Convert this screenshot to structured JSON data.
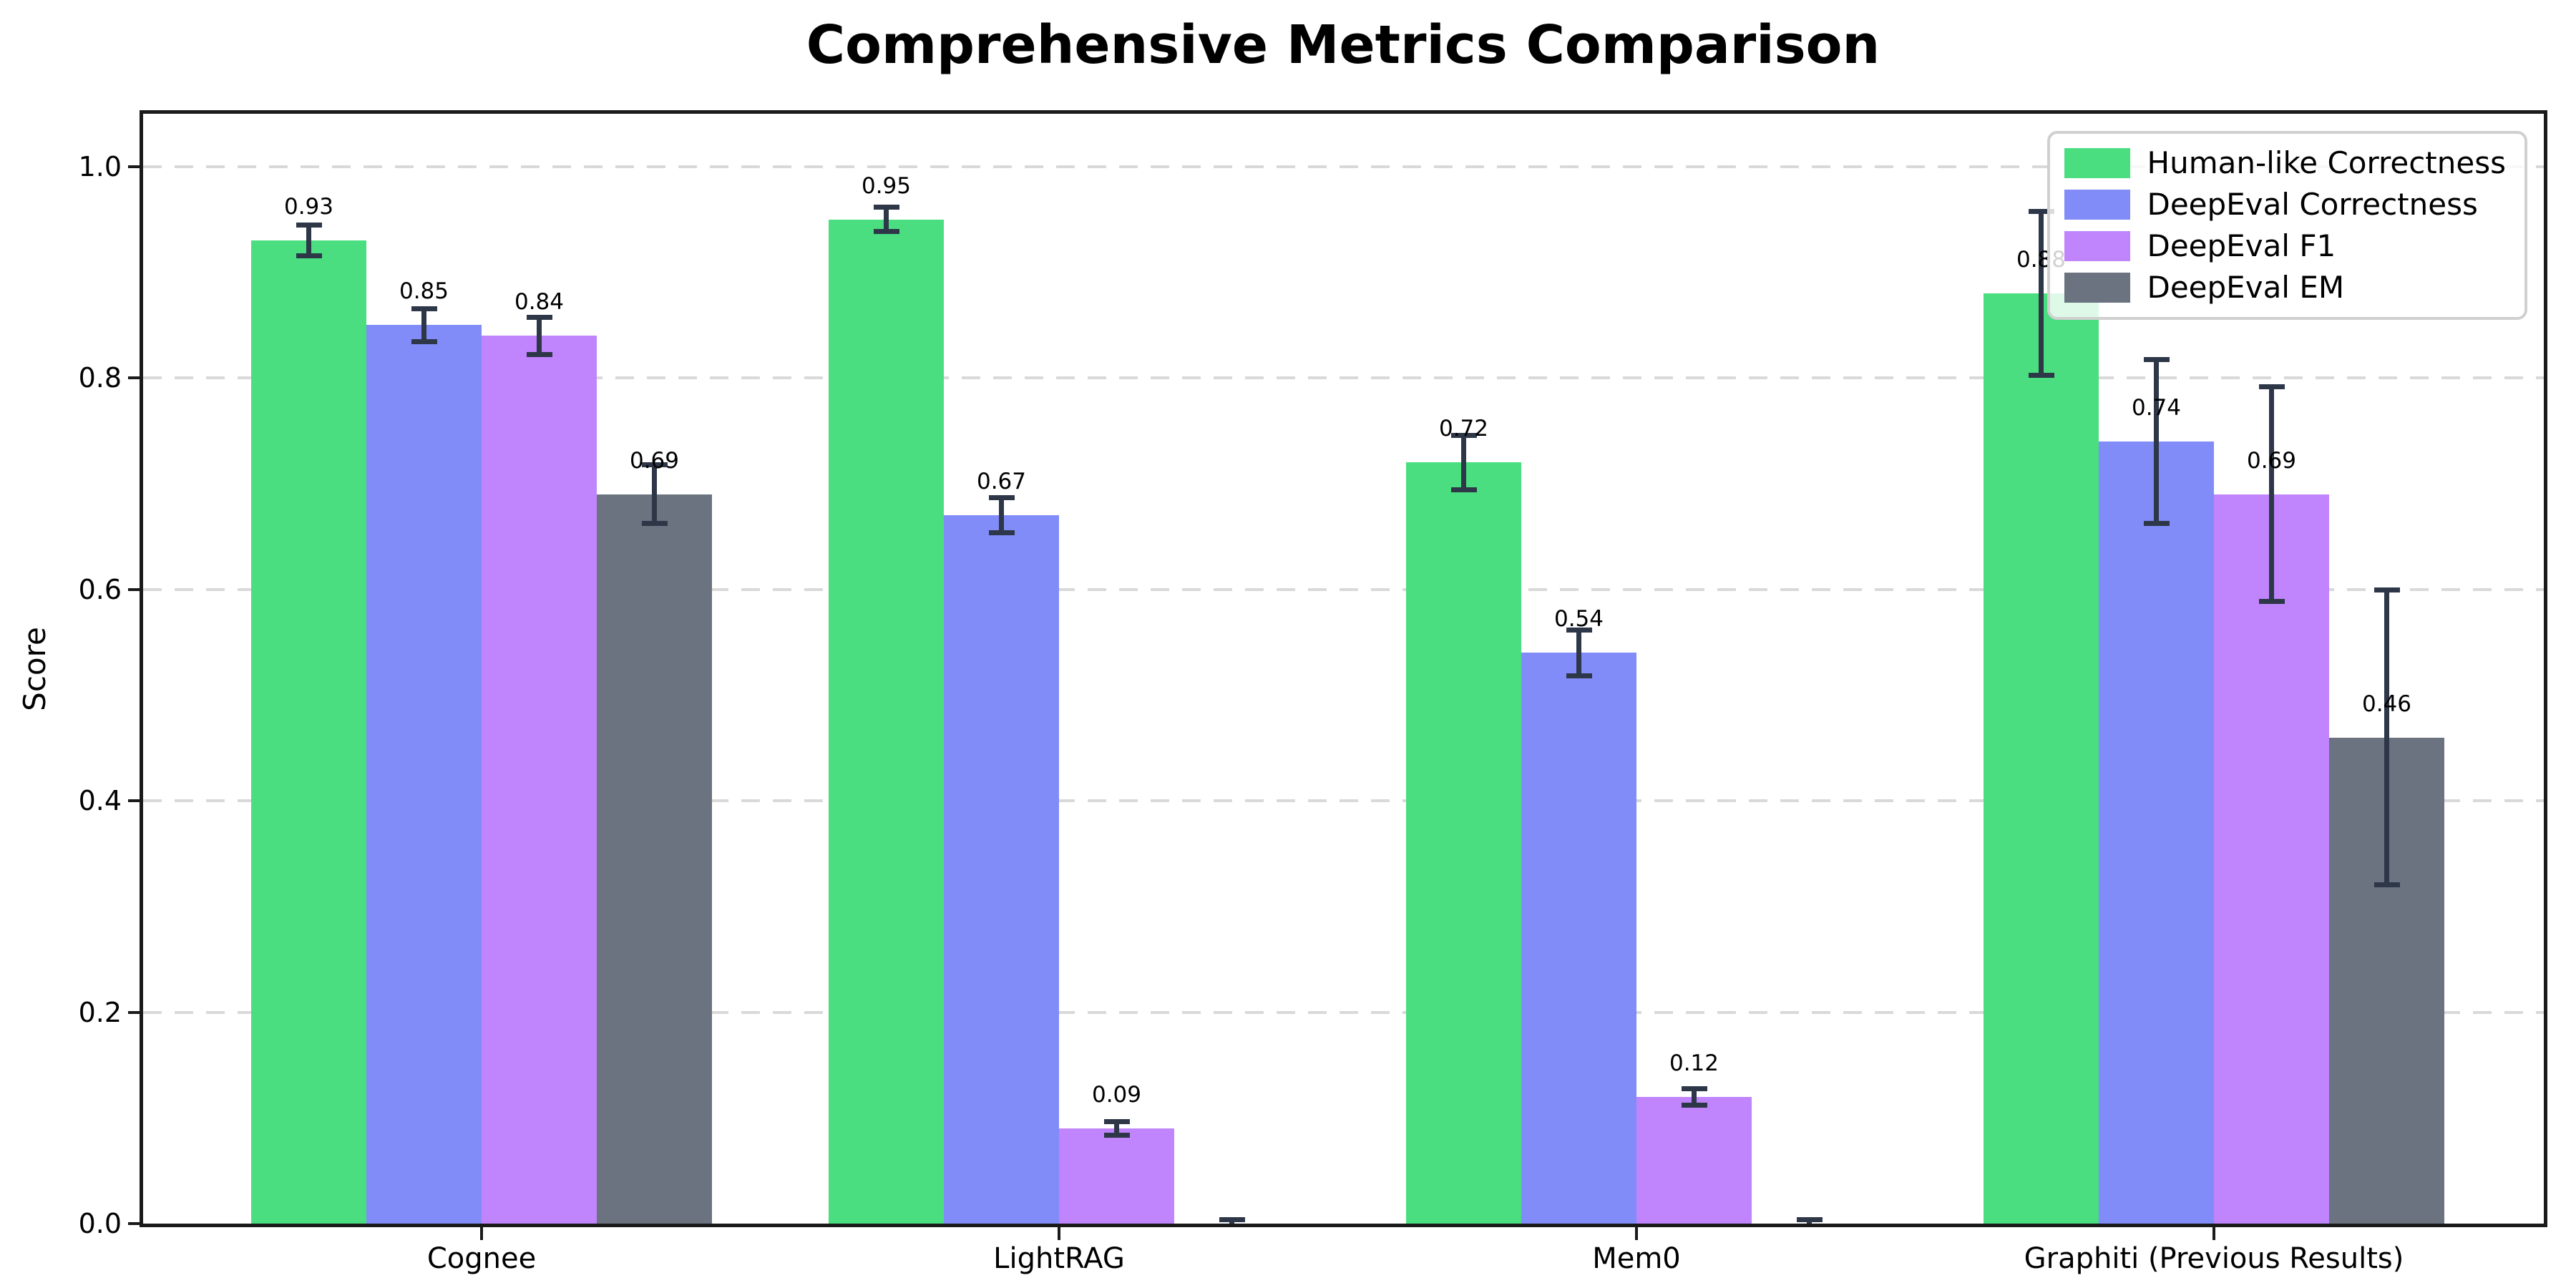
{
  "chart_data": {
    "type": "bar",
    "title": "Comprehensive Metrics Comparison",
    "ylabel": "Score",
    "xlabel": "",
    "ylim": [
      0,
      1.05
    ],
    "yticks": [
      {
        "value": 0.0,
        "label": "0.0"
      },
      {
        "value": 0.2,
        "label": "0.2"
      },
      {
        "value": 0.4,
        "label": "0.4"
      },
      {
        "value": 0.6,
        "label": "0.6"
      },
      {
        "value": 0.8,
        "label": "0.8"
      },
      {
        "value": 1.0,
        "label": "1.0"
      }
    ],
    "grid": "horizontal-dashed",
    "legend_position": "upper-right",
    "categories": [
      "Cognee",
      "LightRAG",
      "Mem0",
      "Graphiti (Previous Results)"
    ],
    "series": [
      {
        "name": "Human-like Correctness",
        "color": "#4ade80",
        "values": [
          0.93,
          0.95,
          0.72,
          0.88
        ],
        "errors": [
          0.015,
          0.012,
          0.026,
          0.078
        ],
        "bar_labels": [
          "0.93",
          "0.95",
          "0.72",
          "0.88"
        ]
      },
      {
        "name": "DeepEval Correctness",
        "color": "#818cf8",
        "values": [
          0.85,
          0.67,
          0.54,
          0.74
        ],
        "errors": [
          0.016,
          0.017,
          0.022,
          0.078
        ],
        "bar_labels": [
          "0.85",
          "0.67",
          "0.54",
          "0.74"
        ]
      },
      {
        "name": "DeepEval F1",
        "color": "#c084fc",
        "values": [
          0.84,
          0.09,
          0.12,
          0.69
        ],
        "errors": [
          0.018,
          0.007,
          0.008,
          0.102
        ],
        "bar_labels": [
          "0.84",
          "0.09",
          "0.12",
          "0.69"
        ]
      },
      {
        "name": "DeepEval EM",
        "color": "#6b7280",
        "values": [
          0.69,
          0.0,
          0.0,
          0.46
        ],
        "errors": [
          0.028,
          0.004,
          0.004,
          0.14
        ],
        "bar_labels": [
          "0.69",
          "",
          "",
          "0.46"
        ]
      }
    ],
    "error_bar_color": "#2d3748",
    "axis_color": "#1a1a1a",
    "grid_color": "#d9d9d9",
    "background_color": "#ffffff"
  }
}
